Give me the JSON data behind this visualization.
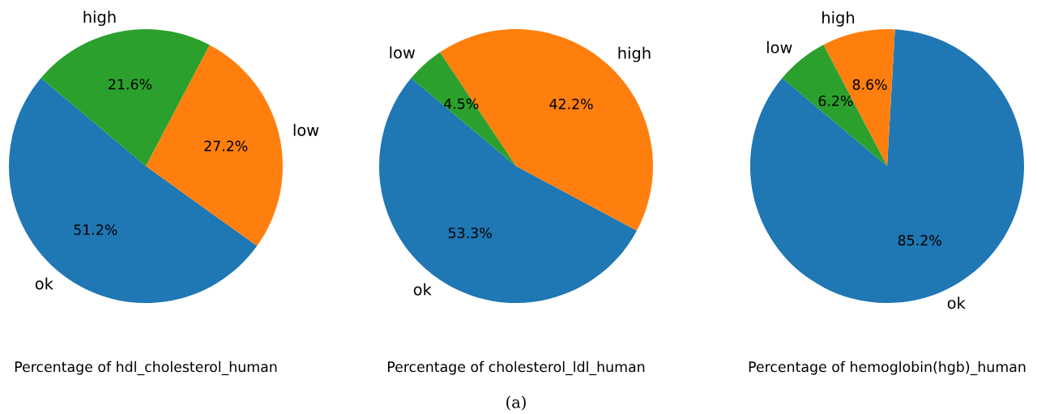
{
  "chart_data": [
    {
      "type": "pie",
      "xlabel": "Percentage of hdl_cholesterol_human",
      "categories": [
        "ok",
        "low",
        "high"
      ],
      "values": [
        51.2,
        27.2,
        21.6
      ],
      "value_labels": [
        "51.2%",
        "27.2%",
        "21.6%"
      ],
      "colors": [
        "#1f77b4",
        "#ff7f0e",
        "#2ca02c"
      ]
    },
    {
      "type": "pie",
      "xlabel": "Percentage of cholesterol_ldl_human",
      "categories": [
        "ok",
        "high",
        "low"
      ],
      "values": [
        53.3,
        42.2,
        4.5
      ],
      "value_labels": [
        "53.3%",
        "42.2%",
        "4.5%"
      ],
      "colors": [
        "#1f77b4",
        "#ff7f0e",
        "#2ca02c"
      ],
      "annotations": [
        "(a)"
      ]
    },
    {
      "type": "pie",
      "xlabel": "Percentage of hemoglobin(hgb)_human",
      "categories": [
        "ok",
        "high",
        "low"
      ],
      "values": [
        85.2,
        8.6,
        6.2
      ],
      "value_labels": [
        "85.2%",
        "8.6%",
        "6.2%"
      ],
      "colors": [
        "#1f77b4",
        "#ff7f0e",
        "#2ca02c"
      ]
    }
  ]
}
